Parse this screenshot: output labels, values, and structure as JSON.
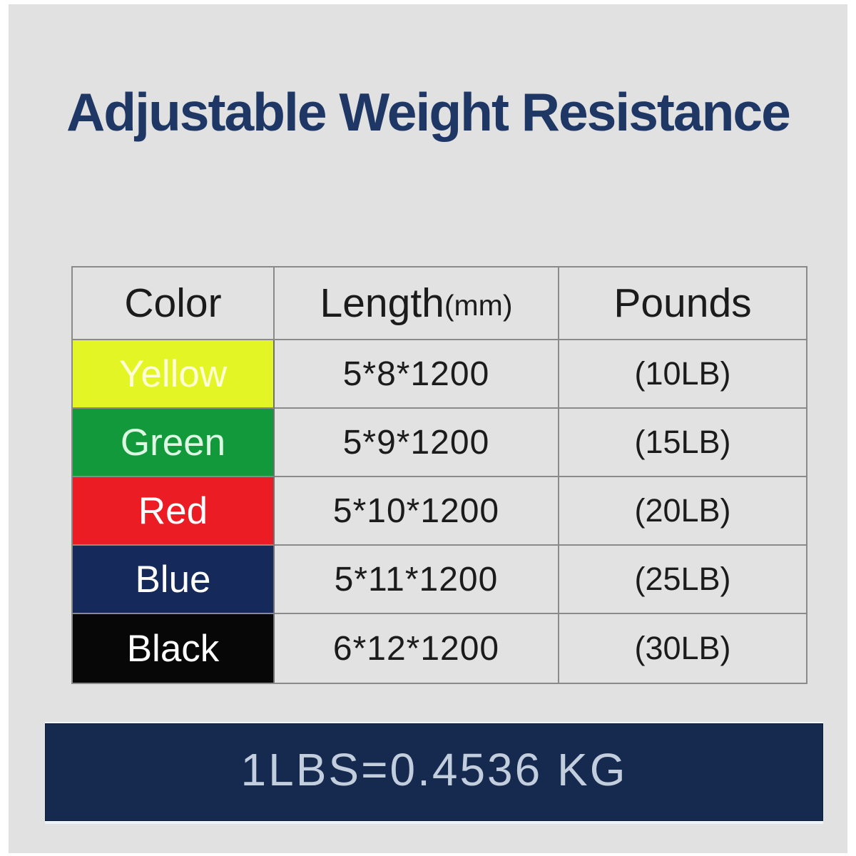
{
  "page": {
    "background_color": "#e1e1e1",
    "frame_color": "#ffffff"
  },
  "title": {
    "text": "Adjustable Weight Resistance",
    "color": "#1e3765"
  },
  "table": {
    "border_color": "#8a8a8a",
    "cell_background": "#e2e2e2",
    "headers": {
      "color": "Color",
      "length": "Length",
      "length_unit": "(mm)",
      "pounds": "Pounds"
    },
    "rows": [
      {
        "color_name": "Yellow",
        "swatch_color": "#e4f526",
        "label_color": "#ffffd6",
        "length": "5*8*1200",
        "pounds": "(10LB)"
      },
      {
        "color_name": "Green",
        "swatch_color": "#12993c",
        "label_color": "#ddf8e2",
        "length": "5*9*1200",
        "pounds": "(15LB)"
      },
      {
        "color_name": "Red",
        "swatch_color": "#ec1c24",
        "label_color": "#ffffff",
        "length": "5*10*1200",
        "pounds": "(20LB)"
      },
      {
        "color_name": "Blue",
        "swatch_color": "#15295a",
        "label_color": "#ffffff",
        "length": "5*11*1200",
        "pounds": "(25LB)"
      },
      {
        "color_name": "Black",
        "swatch_color": "#070707",
        "label_color": "#ffffff",
        "length": "6*12*1200",
        "pounds": "(30LB)"
      }
    ]
  },
  "footer": {
    "text": "1LBS=0.4536 KG",
    "background_color": "#16294f",
    "text_color": "#c2cedd"
  }
}
